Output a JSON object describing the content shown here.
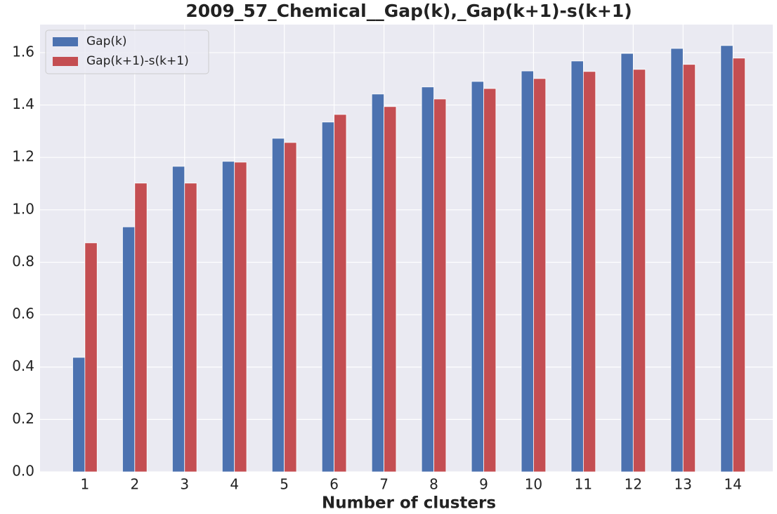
{
  "chart_data": {
    "type": "bar",
    "title": "2009_57_Chemical__Gap(k),_Gap(k+1)-s(k+1)",
    "x_label": "Number of clusters",
    "categories": [
      "1",
      "2",
      "3",
      "4",
      "5",
      "6",
      "7",
      "8",
      "9",
      "10",
      "11",
      "12",
      "13",
      "14"
    ],
    "series": [
      {
        "name": "Gap(k)",
        "color": "#4c72b0",
        "values": [
          0.437,
          0.935,
          1.166,
          1.185,
          1.273,
          1.335,
          1.442,
          1.469,
          1.49,
          1.53,
          1.568,
          1.597,
          1.616,
          1.627
        ]
      },
      {
        "name": "Gap(k+1)-s(k+1)",
        "color": "#c44e52",
        "values": [
          0.874,
          1.102,
          1.102,
          1.182,
          1.257,
          1.364,
          1.394,
          1.423,
          1.463,
          1.501,
          1.528,
          1.536,
          1.555,
          1.579
        ]
      }
    ],
    "ylim": [
      0,
      1.707
    ],
    "yticks": [
      {
        "value": 0,
        "label": "0.0"
      },
      {
        "value": 0.2,
        "label": "0.2"
      },
      {
        "value": 0.4,
        "label": "0.4"
      },
      {
        "value": 0.6,
        "label": "0.6"
      },
      {
        "value": 0.8,
        "label": "0.8"
      },
      {
        "value": 1,
        "label": "1.0"
      },
      {
        "value": 1.2,
        "label": "1.2"
      },
      {
        "value": 1.4,
        "label": "1.4"
      },
      {
        "value": 1.6,
        "label": "1.6"
      }
    ],
    "grid": true,
    "legend": "upper-left"
  }
}
